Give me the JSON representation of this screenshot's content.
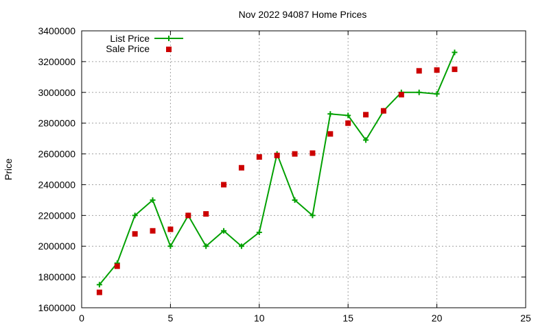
{
  "chart_data": {
    "type": "line",
    "title": "Nov 2022 94087 Home Prices",
    "ylabel": "Price",
    "xlabel": "",
    "xlim": [
      0,
      25
    ],
    "ylim": [
      1600000,
      3400000
    ],
    "xticks": [
      0,
      5,
      10,
      15,
      20,
      25
    ],
    "yticks": [
      1600000,
      1800000,
      2000000,
      2200000,
      2400000,
      2600000,
      2800000,
      3000000,
      3200000,
      3400000
    ],
    "grid": true,
    "legend_position": "top-left",
    "series": [
      {
        "name": "List Price",
        "style": "line-with-plus-markers",
        "color": "#00a000",
        "x": [
          1,
          2,
          3,
          4,
          5,
          6,
          7,
          8,
          9,
          10,
          11,
          12,
          13,
          14,
          15,
          16,
          17,
          18,
          19,
          20,
          21
        ],
        "values": [
          1750000,
          1890000,
          2200000,
          2300000,
          2000000,
          2200000,
          2000000,
          2100000,
          2000000,
          2090000,
          2600000,
          2300000,
          2200000,
          2860000,
          2850000,
          2690000,
          2880000,
          3000000,
          3000000,
          2990000,
          3260000
        ]
      },
      {
        "name": "Sale Price",
        "style": "square-markers",
        "color": "#cc0000",
        "x": [
          1,
          2,
          3,
          4,
          5,
          6,
          7,
          8,
          9,
          10,
          11,
          12,
          13,
          14,
          15,
          16,
          17,
          18,
          19,
          20,
          21
        ],
        "values": [
          1700000,
          1870000,
          2080000,
          2100000,
          2110000,
          2200000,
          2210000,
          2400000,
          2510000,
          2580000,
          2590000,
          2600000,
          2605000,
          2730000,
          2800000,
          2855000,
          2880000,
          2985000,
          3140000,
          3145000,
          3150000
        ]
      }
    ]
  }
}
